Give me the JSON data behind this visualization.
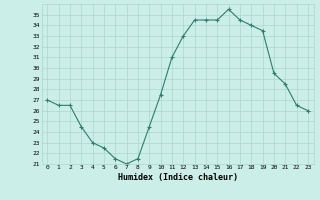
{
  "x": [
    0,
    1,
    2,
    3,
    4,
    5,
    6,
    7,
    8,
    9,
    10,
    11,
    12,
    13,
    14,
    15,
    16,
    17,
    18,
    19,
    20,
    21,
    22,
    23
  ],
  "y": [
    27.0,
    26.5,
    26.5,
    24.5,
    23.0,
    22.5,
    21.5,
    21.0,
    21.5,
    24.5,
    27.5,
    31.0,
    33.0,
    34.5,
    34.5,
    34.5,
    35.5,
    34.5,
    34.0,
    33.5,
    29.5,
    28.5,
    26.5,
    26.0
  ],
  "xlabel": "Humidex (Indice chaleur)",
  "ylabel": "",
  "ylim": [
    21,
    36
  ],
  "xlim": [
    -0.5,
    23.5
  ],
  "yticks": [
    21,
    22,
    23,
    24,
    25,
    26,
    27,
    28,
    29,
    30,
    31,
    32,
    33,
    34,
    35
  ],
  "xticks": [
    0,
    1,
    2,
    3,
    4,
    5,
    6,
    7,
    8,
    9,
    10,
    11,
    12,
    13,
    14,
    15,
    16,
    17,
    18,
    19,
    20,
    21,
    22,
    23
  ],
  "line_color": "#2e7d6e",
  "marker": "+",
  "bg_color": "#cceee8",
  "grid_color": "#aad6cf",
  "title": ""
}
